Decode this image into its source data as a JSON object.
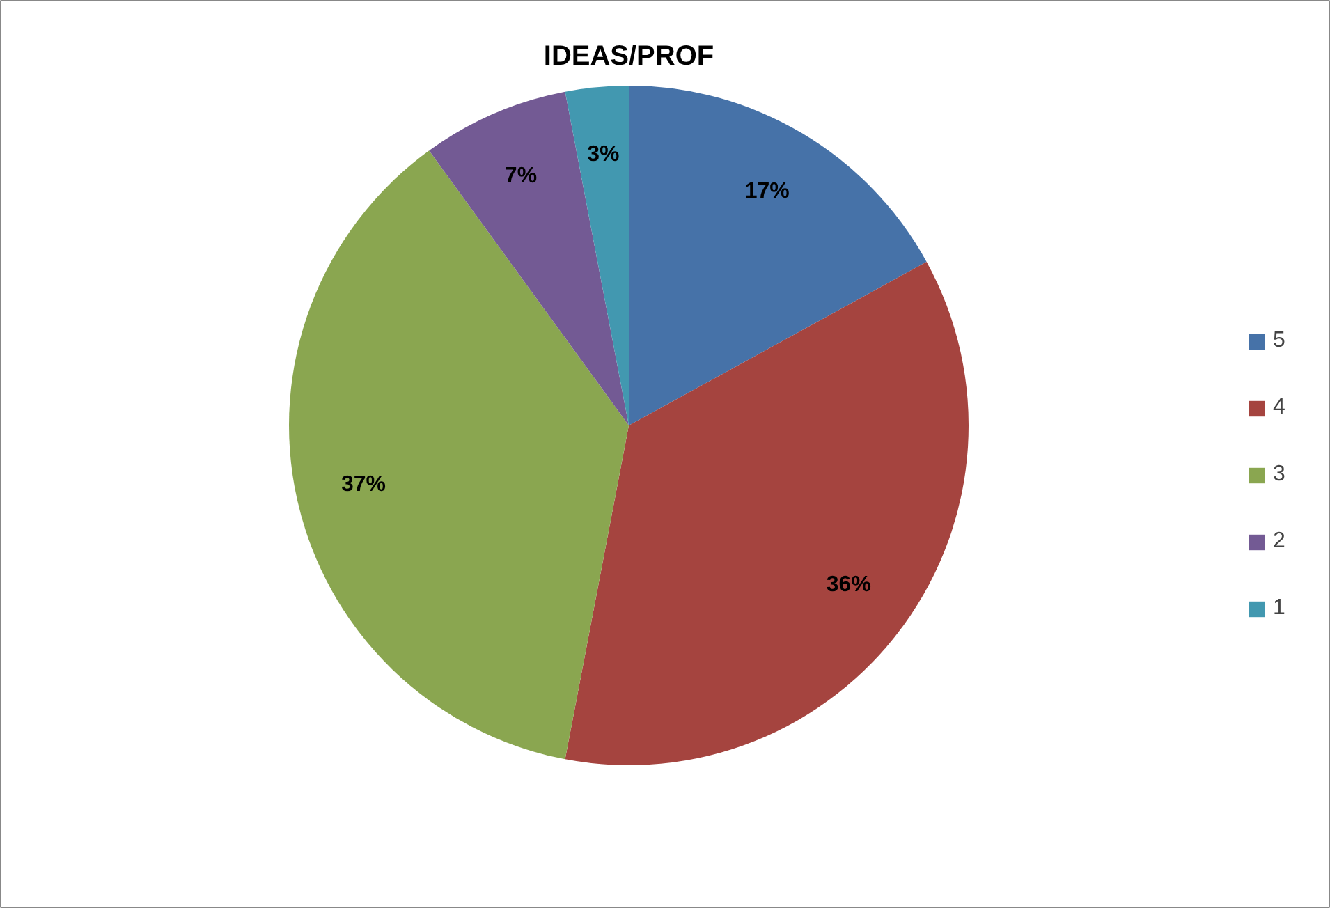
{
  "chart_data": {
    "type": "pie",
    "title": "IDEAS/PROF",
    "categories": [
      "5",
      "4",
      "3",
      "2",
      "1"
    ],
    "values": [
      17,
      36,
      37,
      7,
      3
    ],
    "colors": [
      "#4672a8",
      "#a5443f",
      "#8aa650",
      "#735a94",
      "#4298b0"
    ],
    "value_labels": [
      "17%",
      "36%",
      "37%",
      "7%",
      "3%"
    ],
    "legend": "right"
  }
}
